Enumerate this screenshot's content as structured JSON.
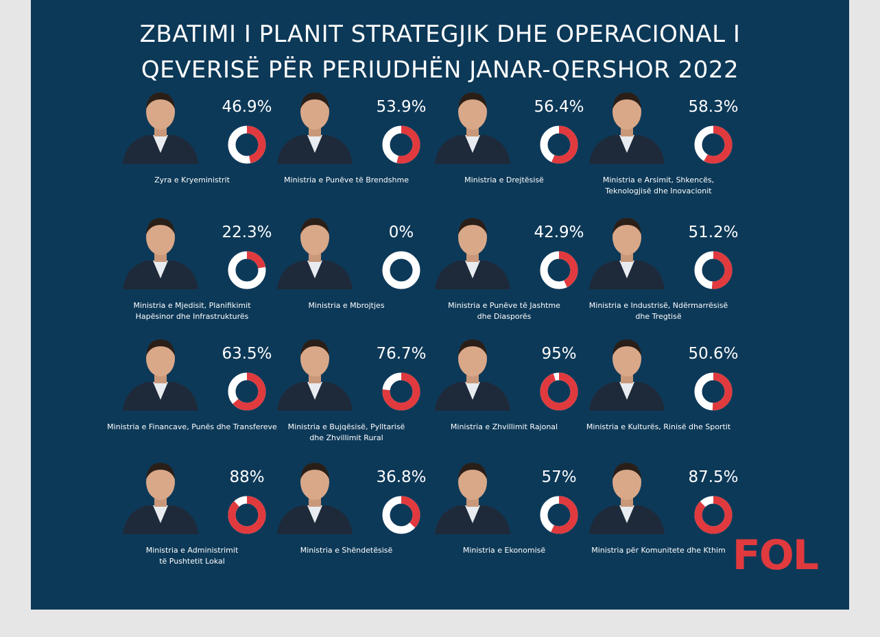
{
  "header": {
    "title_line1": "ZBATIMI I PLANIT STRATEGJIK DHE OPERACIONAL I",
    "title_line2": "QEVERISË PËR PERIUDHËN JANAR-QERSHOR 2022"
  },
  "logo": "FOL",
  "colors": {
    "background": "#0d3958",
    "filled": "#e03a3e",
    "remaining": "#ffffff",
    "page_bg": "#e6e6e6"
  },
  "chart_data": {
    "type": "pie",
    "title": "ZBATIMI I PLANIT STRATEGJIK DHE OPERACIONAL I QEVERISË PËR PERIUDHËN JANAR-QERSHOR 2022",
    "unit": "%",
    "items": [
      {
        "label_lines": [
          "Zyra e Kryeministrit"
        ],
        "value": 46.9,
        "value_label": "46.9%"
      },
      {
        "label_lines": [
          "Ministria e Punëve të Brendshme"
        ],
        "value": 53.9,
        "value_label": "53.9%"
      },
      {
        "label_lines": [
          "Ministria e Drejtësisë"
        ],
        "value": 56.4,
        "value_label": "56.4%"
      },
      {
        "label_lines": [
          "Ministria e Arsimit, Shkencës,",
          "Teknologjisë dhe Inovacionit"
        ],
        "value": 58.3,
        "value_label": "58.3%"
      },
      {
        "label_lines": [
          "Ministria e Mjedisit, Planifikimit",
          "Hapësinor dhe Infrastrukturës"
        ],
        "value": 22.3,
        "value_label": "22.3%"
      },
      {
        "label_lines": [
          "Ministria e Mbrojtjes"
        ],
        "value": 0,
        "value_label": "0%"
      },
      {
        "label_lines": [
          "Ministria e Punëve të Jashtme",
          "dhe Diasporës"
        ],
        "value": 42.9,
        "value_label": "42.9%"
      },
      {
        "label_lines": [
          "Ministria e Industrisë, Ndërmarrësisë",
          "dhe Tregtisë"
        ],
        "value": 51.2,
        "value_label": "51.2%"
      },
      {
        "label_lines": [
          "Ministria e Financave, Punës dhe Transfereve"
        ],
        "value": 63.5,
        "value_label": "63.5%"
      },
      {
        "label_lines": [
          "Ministria e Bujqësisë, Pylltarisë",
          "dhe Zhvillimit Rural"
        ],
        "value": 76.7,
        "value_label": "76.7%"
      },
      {
        "label_lines": [
          "Ministria e Zhvillimit Rajonal"
        ],
        "value": 95,
        "value_label": "95%"
      },
      {
        "label_lines": [
          "Ministria e Kulturës, Rinisë dhe Sportit"
        ],
        "value": 50.6,
        "value_label": "50.6%"
      },
      {
        "label_lines": [
          "Ministria e Administrimit",
          "të Pushtetit Lokal"
        ],
        "value": 88,
        "value_label": "88%"
      },
      {
        "label_lines": [
          "Ministria e Shëndetësisë"
        ],
        "value": 36.8,
        "value_label": "36.8%"
      },
      {
        "label_lines": [
          "Ministria  e Ekonomisë"
        ],
        "value": 57,
        "value_label": "57%"
      },
      {
        "label_lines": [
          "Ministria  për Komunitete dhe Kthim"
        ],
        "value": 87.5,
        "value_label": "87.5%"
      }
    ]
  }
}
